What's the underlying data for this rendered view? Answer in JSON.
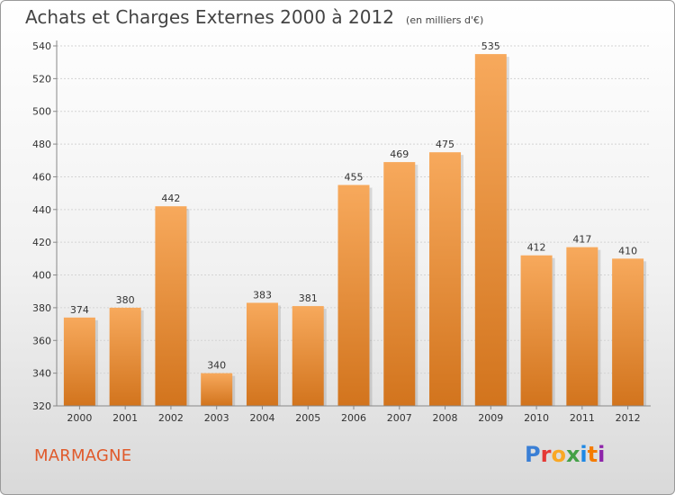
{
  "header": {
    "title": "Achats et Charges Externes 2000 à 2012",
    "unit": "(en milliers d'€)"
  },
  "footer": {
    "commune": "MARMAGNE",
    "logo_text": "Proxiti",
    "logo_colors": [
      "#3a7fd5",
      "#e53935",
      "#f9a825",
      "#43a047",
      "#1e88e5",
      "#f57c00",
      "#8e24aa"
    ]
  },
  "chart_data": {
    "type": "bar",
    "title": "Achats et Charges Externes 2000 à 2012",
    "subtitle": "(en milliers d'€)",
    "xlabel": "",
    "ylabel": "",
    "categories": [
      "2000",
      "2001",
      "2002",
      "2003",
      "2004",
      "2005",
      "2006",
      "2007",
      "2008",
      "2009",
      "2010",
      "2011",
      "2012"
    ],
    "values": [
      374,
      380,
      442,
      340,
      383,
      381,
      455,
      469,
      475,
      535,
      412,
      417,
      410
    ],
    "data_labels": [
      "374",
      "380",
      "442",
      "340",
      "383",
      "381",
      "455",
      "469",
      "475",
      "535",
      "412",
      "417",
      "410"
    ],
    "ylim": [
      320,
      540
    ],
    "yticks": [
      "320",
      "340",
      "360",
      "380",
      "400",
      "420",
      "440",
      "460",
      "480",
      "500",
      "520",
      "540"
    ],
    "grid": true,
    "bar_color_top": "#f7a95c",
    "bar_color_bottom": "#d2741d"
  }
}
